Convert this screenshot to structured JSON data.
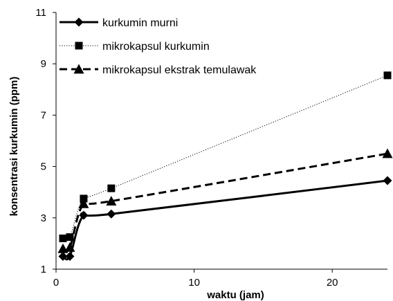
{
  "chart_data": {
    "type": "line",
    "title": "",
    "xlabel": "waktu (jam)",
    "ylabel": "konsentrasi kurkumin (ppm)",
    "xlim": [
      0,
      24
    ],
    "ylim": [
      1,
      11
    ],
    "xticks": [
      0,
      10,
      20
    ],
    "yticks": [
      1,
      3,
      5,
      7,
      9,
      11
    ],
    "grid": false,
    "legend_position": "top-left",
    "series": [
      {
        "name": "kurkumin murni",
        "marker": "diamond",
        "line_style": "solid",
        "color": "#000000",
        "x": [
          0.5,
          1,
          2,
          4,
          24
        ],
        "y": [
          1.5,
          1.5,
          3.1,
          3.15,
          4.45
        ]
      },
      {
        "name": "mikrokapsul kurkumin",
        "marker": "square",
        "line_style": "dotted",
        "color": "#000000",
        "x": [
          0.5,
          1,
          2,
          4,
          24
        ],
        "y": [
          2.2,
          2.25,
          3.75,
          4.15,
          8.55
        ]
      },
      {
        "name": "mikrokapsul ekstrak temulawak",
        "marker": "triangle",
        "line_style": "dashed",
        "color": "#000000",
        "x": [
          0.5,
          1,
          2,
          4,
          24
        ],
        "y": [
          1.8,
          1.85,
          3.55,
          3.65,
          5.5
        ]
      }
    ]
  }
}
